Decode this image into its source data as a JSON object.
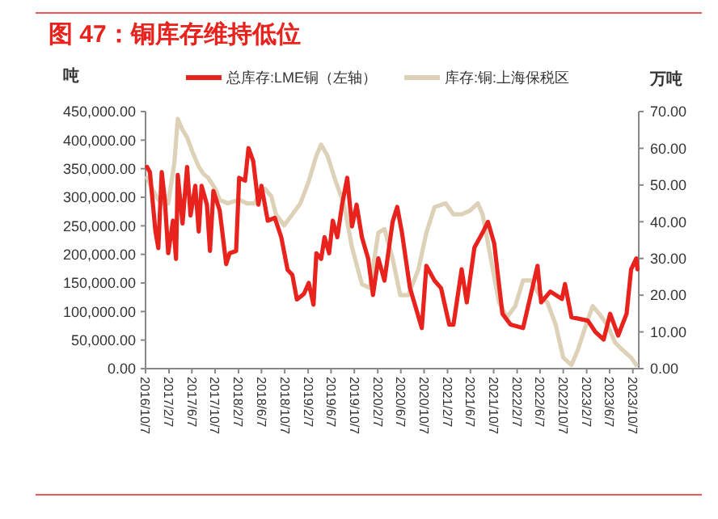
{
  "chart_data": {
    "type": "line",
    "title": "图 47：铜库存维持低位",
    "ylabel": "吨",
    "y2label": "万吨",
    "legend": "top",
    "grid": false,
    "marker": "none",
    "line_style": "solid",
    "xlim": [
      "2016-10-07",
      "2023-11-07"
    ],
    "xticks": [
      {
        "value": "2016-10-07",
        "label": "2016/10/7"
      },
      {
        "value": "2017-02-07",
        "label": "2017/2/7"
      },
      {
        "value": "2017-06-07",
        "label": "2017/6/7"
      },
      {
        "value": "2017-10-07",
        "label": "2017/10/7"
      },
      {
        "value": "2018-02-07",
        "label": "2018/2/7"
      },
      {
        "value": "2018-06-07",
        "label": "2018/6/7"
      },
      {
        "value": "2018-10-07",
        "label": "2018/10/7"
      },
      {
        "value": "2019-02-07",
        "label": "2019/2/7"
      },
      {
        "value": "2019-06-07",
        "label": "2019/6/7"
      },
      {
        "value": "2019-10-07",
        "label": "2019/10/7"
      },
      {
        "value": "2020-02-07",
        "label": "2020/2/7"
      },
      {
        "value": "2020-06-07",
        "label": "2020/6/7"
      },
      {
        "value": "2020-10-07",
        "label": "2020/10/7"
      },
      {
        "value": "2021-02-07",
        "label": "2021/2/7"
      },
      {
        "value": "2021-06-07",
        "label": "2021/6/7"
      },
      {
        "value": "2021-10-07",
        "label": "2021/10/7"
      },
      {
        "value": "2022-02-07",
        "label": "2022/2/7"
      },
      {
        "value": "2022-06-07",
        "label": "2022/6/7"
      },
      {
        "value": "2022-10-07",
        "label": "2022/10/7"
      },
      {
        "value": "2023-02-07",
        "label": "2023/2/7"
      },
      {
        "value": "2023-06-07",
        "label": "2023/6/7"
      },
      {
        "value": "2023-10-07",
        "label": "2023/10/7"
      }
    ],
    "ylim": [
      0,
      450000
    ],
    "yticks": [
      {
        "value": 0,
        "label": "0.00"
      },
      {
        "value": 50000,
        "label": "50,000.00"
      },
      {
        "value": 100000,
        "label": "100,000.00"
      },
      {
        "value": 150000,
        "label": "150,000.00"
      },
      {
        "value": 200000,
        "label": "200,000.00"
      },
      {
        "value": 250000,
        "label": "250,000.00"
      },
      {
        "value": 300000,
        "label": "300,000.00"
      },
      {
        "value": 350000,
        "label": "350,000.00"
      },
      {
        "value": 400000,
        "label": "400,000.00"
      },
      {
        "value": 450000,
        "label": "450,000.00"
      }
    ],
    "y2lim": [
      0,
      70
    ],
    "y2ticks": [
      {
        "value": 0,
        "label": "0.00"
      },
      {
        "value": 10,
        "label": "10.00"
      },
      {
        "value": 20,
        "label": "20.00"
      },
      {
        "value": 30,
        "label": "30.00"
      },
      {
        "value": 40,
        "label": "40.00"
      },
      {
        "value": 50,
        "label": "50.00"
      },
      {
        "value": 60,
        "label": "60.00"
      },
      {
        "value": 70,
        "label": "70.00"
      }
    ],
    "series": [
      {
        "name": "总库存:LME铜（左轴）",
        "color": "#e8231e",
        "axis": "y",
        "x": [
          "2016-10-15",
          "2016-10-30",
          "2016-11-28",
          "2016-12-13",
          "2016-12-31",
          "2017-01-16",
          "2017-02-03",
          "2017-02-28",
          "2017-03-16",
          "2017-03-25",
          "2017-04-19",
          "2017-05-13",
          "2017-05-31",
          "2017-06-25",
          "2017-07-13",
          "2017-07-28",
          "2017-08-25",
          "2017-09-10",
          "2017-09-28",
          "2017-10-31",
          "2017-12-04",
          "2017-12-22",
          "2018-01-25",
          "2018-02-10",
          "2018-03-13",
          "2018-03-31",
          "2018-04-25",
          "2018-05-22",
          "2018-06-07",
          "2018-07-10",
          "2018-08-16",
          "2018-09-19",
          "2018-10-22",
          "2018-11-16",
          "2018-12-10",
          "2019-01-16",
          "2019-02-10",
          "2019-03-07",
          "2019-03-22",
          "2019-04-16",
          "2019-05-04",
          "2019-05-28",
          "2019-06-16",
          "2019-07-10",
          "2019-08-04",
          "2019-08-31",
          "2019-09-25",
          "2019-10-19",
          "2019-11-16",
          "2019-12-19",
          "2020-01-13",
          "2020-02-10",
          "2020-03-13",
          "2020-04-25",
          "2020-05-19",
          "2020-06-13",
          "2020-07-25",
          "2020-09-25",
          "2020-10-19",
          "2020-12-01",
          "2021-01-04",
          "2021-02-16",
          "2021-03-10",
          "2021-04-22",
          "2021-05-19",
          "2021-06-28",
          "2021-08-10",
          "2021-09-07",
          "2021-10-10",
          "2021-11-22",
          "2022-01-04",
          "2022-03-10",
          "2022-05-25",
          "2022-06-13",
          "2022-07-31",
          "2022-09-30",
          "2022-10-16",
          "2022-11-19",
          "2023-02-13",
          "2023-03-25",
          "2023-05-07",
          "2023-06-10",
          "2023-07-22",
          "2023-09-04",
          "2023-09-28",
          "2023-10-25",
          "2023-10-31"
        ],
        "values": [
          353000,
          344000,
          240000,
          211000,
          344000,
          296000,
          202000,
          259000,
          192000,
          339000,
          254000,
          353000,
          268000,
          320000,
          240000,
          320000,
          287000,
          206000,
          311000,
          277000,
          183000,
          202000,
          206000,
          334000,
          329000,
          386000,
          363000,
          287000,
          320000,
          259000,
          264000,
          230000,
          173000,
          164000,
          121000,
          131000,
          150000,
          112000,
          202000,
          192000,
          230000,
          202000,
          259000,
          230000,
          287000,
          334000,
          249000,
          287000,
          230000,
          192000,
          129000,
          193000,
          154000,
          257000,
          283000,
          238000,
          141000,
          71000,
          180000,
          154000,
          141000,
          77000,
          77000,
          174000,
          116000,
          212000,
          238000,
          257000,
          219000,
          96000,
          77000,
          71000,
          180000,
          116000,
          135000,
          122000,
          148000,
          90000,
          84000,
          64000,
          51000,
          96000,
          58000,
          96000,
          174000,
          193000,
          174000
        ]
      },
      {
        "name": "库存:铜:上海保税区",
        "color": "#ddd1b8",
        "axis": "y2",
        "x": [
          "2016-10-15",
          "2016-11-10",
          "2016-12-13",
          "2017-01-10",
          "2017-02-03",
          "2017-03-07",
          "2017-03-25",
          "2017-04-19",
          "2017-05-13",
          "2017-06-10",
          "2017-07-13",
          "2017-08-07",
          "2017-08-31",
          "2017-10-07",
          "2017-10-31",
          "2017-12-13",
          "2018-02-10",
          "2018-03-22",
          "2018-05-04",
          "2018-05-28",
          "2018-06-25",
          "2018-07-28",
          "2018-08-22",
          "2018-10-04",
          "2018-11-16",
          "2018-12-28",
          "2019-02-10",
          "2019-03-22",
          "2019-04-16",
          "2019-05-19",
          "2019-07-01",
          "2019-08-13",
          "2019-09-25",
          "2019-11-16",
          "2019-12-28",
          "2020-02-10",
          "2020-03-13",
          "2020-04-25",
          "2020-06-04",
          "2020-07-16",
          "2020-09-07",
          "2020-10-19",
          "2020-12-01",
          "2021-01-28",
          "2021-03-10",
          "2021-04-22",
          "2021-06-04",
          "2021-07-16",
          "2021-08-10",
          "2021-09-22",
          "2021-11-04",
          "2021-12-16",
          "2022-01-28",
          "2022-03-10",
          "2022-04-22",
          "2022-06-04",
          "2022-07-16",
          "2022-08-28",
          "2022-10-07",
          "2022-11-19",
          "2022-12-22",
          "2023-02-04",
          "2023-03-10",
          "2023-04-13",
          "2023-05-25",
          "2023-07-07",
          "2023-08-16",
          "2023-09-28",
          "2023-10-25"
        ],
        "values": [
          52,
          49,
          46,
          45,
          45,
          56,
          68,
          65,
          63,
          59,
          55,
          53,
          52,
          49,
          46,
          45,
          46,
          45,
          45,
          48,
          49,
          47,
          42,
          39,
          42,
          45,
          51,
          58,
          61,
          58,
          51,
          45,
          33,
          23,
          22,
          37,
          38,
          30,
          20,
          20,
          27,
          37,
          44,
          45,
          42,
          42,
          43,
          45,
          42,
          30,
          18,
          14,
          17,
          24,
          24,
          20,
          18,
          12,
          3,
          1,
          5,
          12,
          17,
          15,
          12,
          7,
          5,
          3,
          1
        ]
      }
    ]
  }
}
